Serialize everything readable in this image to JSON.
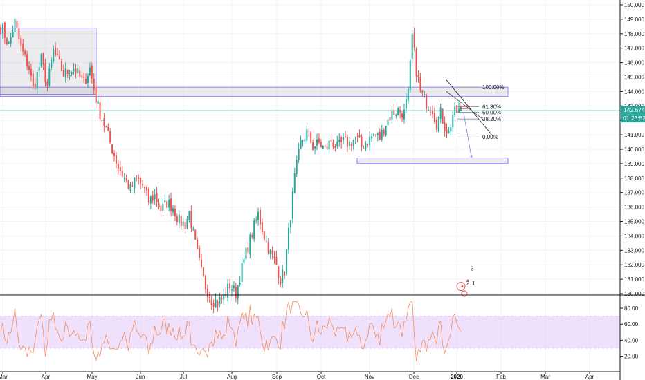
{
  "chart_data": [
    {
      "type": "candlestick",
      "title": "",
      "symbol": "",
      "x_months": [
        "Mar",
        "Apr",
        "May",
        "Jun",
        "Jul",
        "Aug",
        "Sep",
        "Oct",
        "Nov",
        "Dec",
        "2020",
        "Feb",
        "Mar",
        "Apr"
      ],
      "y_ticks": [
        "150.000",
        "149.000",
        "148.000",
        "147.000",
        "146.000",
        "145.000",
        "144.000",
        "143.000",
        "142.000",
        "141.000",
        "140.000",
        "139.000",
        "138.000",
        "137.000",
        "136.000",
        "135.000",
        "134.000",
        "133.000",
        "132.000",
        "131.000",
        "130.000"
      ],
      "ylim": [
        129.9,
        150.1
      ],
      "last_price": "142.674",
      "last_price_value": 142.674,
      "countdown": "01:26:52",
      "waypoints": [
        [
          0,
          148.6
        ],
        [
          4,
          147.2
        ],
        [
          7,
          148.8
        ],
        [
          10,
          147.0
        ],
        [
          14,
          145.6
        ],
        [
          16,
          144.2
        ],
        [
          20,
          146.2
        ],
        [
          23,
          144.4
        ],
        [
          26,
          146.8
        ],
        [
          31,
          145.2
        ],
        [
          36,
          145.6
        ],
        [
          41,
          144.6
        ],
        [
          44,
          145.6
        ],
        [
          47,
          143.5
        ],
        [
          49,
          142.5
        ],
        [
          52,
          141.4
        ],
        [
          55,
          140.0
        ],
        [
          58,
          138.8
        ],
        [
          61,
          138.0
        ],
        [
          64,
          137.2
        ],
        [
          67,
          138.0
        ],
        [
          70,
          137.5
        ],
        [
          73,
          136.4
        ],
        [
          76,
          136.8
        ],
        [
          79,
          135.8
        ],
        [
          82,
          136.3
        ],
        [
          85,
          136.0
        ],
        [
          88,
          135.0
        ],
        [
          91,
          134.8
        ],
        [
          93,
          135.6
        ],
        [
          96,
          133.4
        ],
        [
          99,
          131.5
        ],
        [
          101,
          130.5
        ],
        [
          104,
          129.6
        ],
        [
          107,
          129.4
        ],
        [
          110,
          129.8
        ],
        [
          113,
          130.6
        ],
        [
          116,
          130.0
        ],
        [
          118,
          131.2
        ],
        [
          121,
          132.8
        ],
        [
          124,
          134.2
        ],
        [
          127,
          135.5
        ],
        [
          130,
          134.0
        ],
        [
          133,
          132.8
        ],
        [
          136,
          132.0
        ],
        [
          138,
          131.0
        ],
        [
          140,
          131.6
        ],
        [
          142,
          134.2
        ],
        [
          145,
          138.0
        ],
        [
          148,
          140.4
        ],
        [
          151,
          141.2
        ],
        [
          154,
          140.2
        ],
        [
          157,
          140.4
        ],
        [
          160,
          140.0
        ],
        [
          163,
          140.6
        ],
        [
          166,
          140.1
        ],
        [
          169,
          140.5
        ],
        [
          172,
          140.4
        ],
        [
          175,
          140.8
        ],
        [
          178,
          140.2
        ],
        [
          181,
          140.6
        ],
        [
          184,
          141.0
        ],
        [
          187,
          140.8
        ],
        [
          190,
          141.8
        ],
        [
          193,
          142.5
        ],
        [
          196,
          142.7
        ],
        [
          199,
          142.5
        ],
        [
          201,
          143.8
        ],
        [
          203,
          147.8
        ],
        [
          205,
          145.5
        ],
        [
          207,
          144.0
        ],
        [
          210,
          143.2
        ],
        [
          213,
          142.8
        ],
        [
          215,
          141.8
        ],
        [
          217,
          142.5
        ],
        [
          219,
          141.6
        ],
        [
          221,
          141.1
        ],
        [
          223,
          142.4
        ],
        [
          225,
          142.6
        ],
        [
          227,
          142.674
        ]
      ]
    },
    {
      "type": "line",
      "title": "",
      "y_ticks": [
        "80.00",
        "60.00",
        "40.00",
        "20.00"
      ],
      "ylim": [
        10,
        90
      ],
      "band": [
        30,
        70
      ]
    }
  ],
  "fib_labels": [
    "100.00%",
    "61.80%",
    "50.00%",
    "38.20%",
    "0.00%"
  ],
  "fib_levels": [
    144.3,
    142.95,
    142.55,
    142.1,
    140.85
  ],
  "zones": [
    {
      "y_top": 148.4,
      "y_bottom": 143.8,
      "name": "zone-upper-left"
    },
    {
      "y_top": 144.3,
      "y_bottom": 143.65,
      "name": "zone-resistance"
    },
    {
      "y_top": 139.4,
      "y_bottom": 139.0,
      "name": "zone-support"
    }
  ],
  "markers": [
    "3",
    "2",
    "1"
  ],
  "colors": {
    "up": "#26a69a",
    "down": "#ef5350",
    "zone_fill": "#9598a1",
    "zone_stroke": "#7b61ff",
    "rsi_line": "#f58d5b",
    "rsi_band": "#e1c8f7",
    "price_tag": "#26a69a",
    "grid": "#f0f3fa",
    "axis": "#131722"
  }
}
